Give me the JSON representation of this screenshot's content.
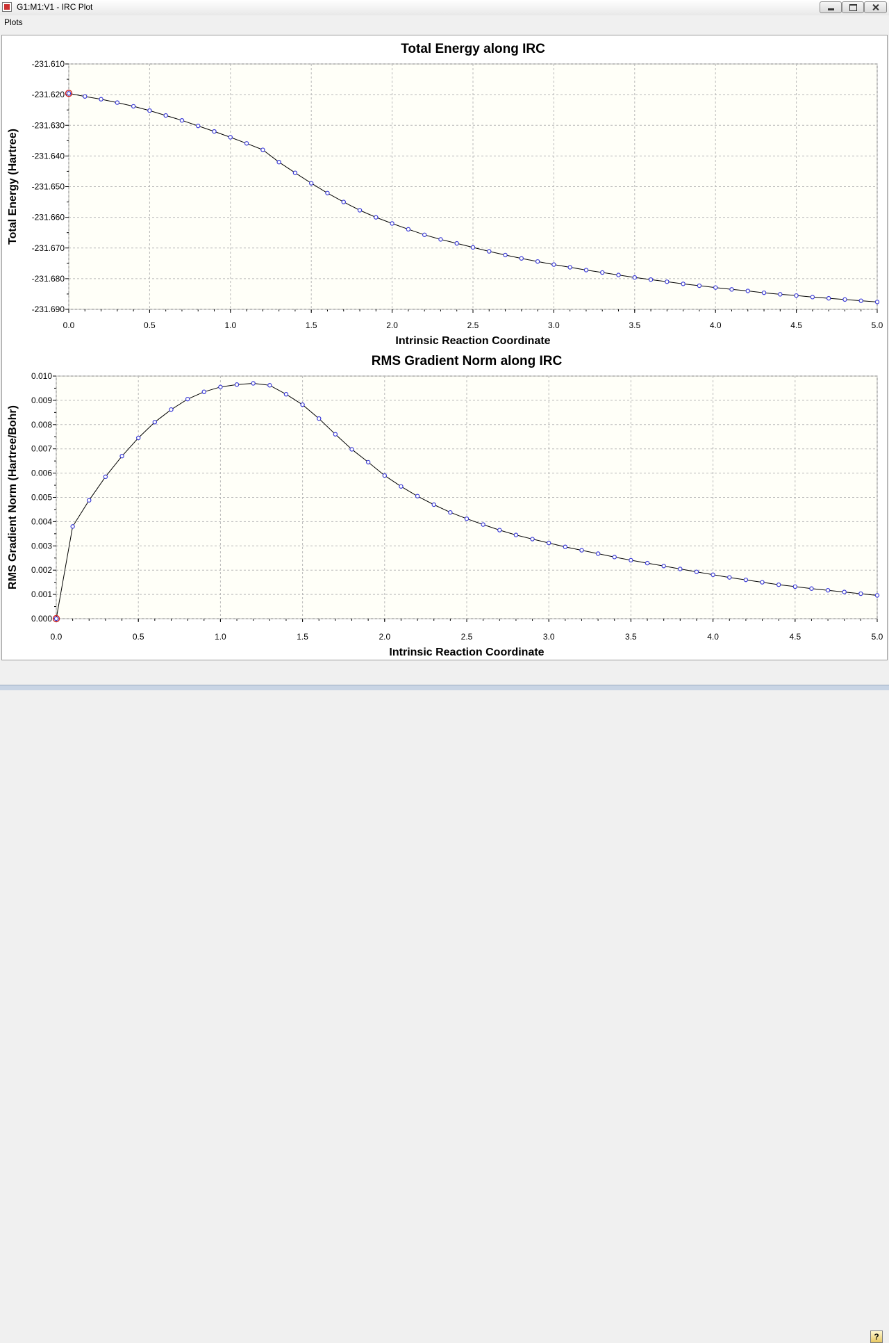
{
  "window": {
    "title": "G1:M1:V1 - IRC Plot"
  },
  "menu": {
    "plots": "Plots"
  },
  "help": {
    "glyph": "?"
  },
  "colors": {
    "plot_bg": "#fffff8",
    "line": "#000000",
    "marker": "#3b3bd6",
    "highlight": "#cc2222",
    "grid": "#b8b8b8"
  },
  "chart_data": [
    {
      "type": "line",
      "title": "Total Energy along IRC",
      "xlabel": "Intrinsic Reaction Coordinate",
      "ylabel": "Total Energy (Hartree)",
      "xlim": [
        0,
        5.0
      ],
      "ylim": [
        -231.69,
        -231.61
      ],
      "xticks": [
        "0.0",
        "0.5",
        "1.0",
        "1.5",
        "2.0",
        "2.5",
        "3.0",
        "3.5",
        "4.0",
        "4.5",
        "5.0"
      ],
      "yticks": [
        "-231.610",
        "-231.620",
        "-231.630",
        "-231.640",
        "-231.650",
        "-231.660",
        "-231.670",
        "-231.680",
        "-231.690"
      ],
      "grid": true,
      "highlight_index": 0,
      "x": [
        0.0,
        0.1,
        0.2,
        0.3,
        0.4,
        0.5,
        0.6,
        0.7,
        0.8,
        0.9,
        1.0,
        1.1,
        1.2,
        1.3,
        1.4,
        1.5,
        1.6,
        1.7,
        1.8,
        1.9,
        2.0,
        2.1,
        2.2,
        2.3,
        2.4,
        2.5,
        2.6,
        2.7,
        2.8,
        2.9,
        3.0,
        3.1,
        3.2,
        3.3,
        3.4,
        3.5,
        3.6,
        3.7,
        3.8,
        3.9,
        4.0,
        4.1,
        4.2,
        4.3,
        4.4,
        4.5,
        4.6,
        4.7,
        4.8,
        4.9,
        5.0
      ],
      "y": [
        -231.6196,
        -231.6206,
        -231.6215,
        -231.6226,
        -231.6238,
        -231.6252,
        -231.6268,
        -231.6284,
        -231.6302,
        -231.632,
        -231.6339,
        -231.6359,
        -231.638,
        -231.642,
        -231.6455,
        -231.6489,
        -231.6521,
        -231.655,
        -231.6577,
        -231.66,
        -231.662,
        -231.6639,
        -231.6657,
        -231.6672,
        -231.6685,
        -231.6698,
        -231.6711,
        -231.6723,
        -231.6734,
        -231.6744,
        -231.6754,
        -231.6763,
        -231.6772,
        -231.678,
        -231.6788,
        -231.6796,
        -231.6803,
        -231.681,
        -231.6817,
        -231.6823,
        -231.6829,
        -231.6835,
        -231.684,
        -231.6846,
        -231.6851,
        -231.6855,
        -231.686,
        -231.6864,
        -231.6868,
        -231.6872,
        -231.6876
      ]
    },
    {
      "type": "line",
      "title": "RMS Gradient Norm along IRC",
      "xlabel": "Intrinsic Reaction Coordinate",
      "ylabel": "RMS Gradient Norm (Hartree/Bohr)",
      "xlim": [
        0,
        5.0
      ],
      "ylim": [
        0,
        0.01
      ],
      "xticks": [
        "0.0",
        "0.5",
        "1.0",
        "1.5",
        "2.0",
        "2.5",
        "3.0",
        "3.5",
        "4.0",
        "4.5",
        "5.0"
      ],
      "yticks": [
        "0.010",
        "0.009",
        "0.008",
        "0.007",
        "0.006",
        "0.005",
        "0.004",
        "0.003",
        "0.002",
        "0.001",
        "0.000"
      ],
      "grid": true,
      "highlight_index": 0,
      "x": [
        0.0,
        0.1,
        0.2,
        0.3,
        0.4,
        0.5,
        0.6,
        0.7,
        0.8,
        0.9,
        1.0,
        1.1,
        1.2,
        1.3,
        1.4,
        1.5,
        1.6,
        1.7,
        1.8,
        1.9,
        2.0,
        2.1,
        2.2,
        2.3,
        2.4,
        2.5,
        2.6,
        2.7,
        2.8,
        2.9,
        3.0,
        3.1,
        3.2,
        3.3,
        3.4,
        3.5,
        3.6,
        3.7,
        3.8,
        3.9,
        4.0,
        4.1,
        4.2,
        4.3,
        4.4,
        4.5,
        4.6,
        4.7,
        4.8,
        4.9,
        5.0
      ],
      "y": [
        0.0,
        0.0038,
        0.00488,
        0.00585,
        0.0067,
        0.00745,
        0.0081,
        0.00862,
        0.00905,
        0.00935,
        0.00955,
        0.00965,
        0.0097,
        0.00962,
        0.00925,
        0.00882,
        0.00825,
        0.0076,
        0.00698,
        0.00645,
        0.0059,
        0.00545,
        0.00505,
        0.0047,
        0.00438,
        0.00412,
        0.00388,
        0.00365,
        0.00345,
        0.00328,
        0.00312,
        0.00296,
        0.00282,
        0.00268,
        0.00254,
        0.00241,
        0.00229,
        0.00217,
        0.00205,
        0.00193,
        0.00181,
        0.0017,
        0.0016,
        0.0015,
        0.0014,
        0.00132,
        0.00124,
        0.00117,
        0.0011,
        0.00103,
        0.00096
      ]
    }
  ]
}
